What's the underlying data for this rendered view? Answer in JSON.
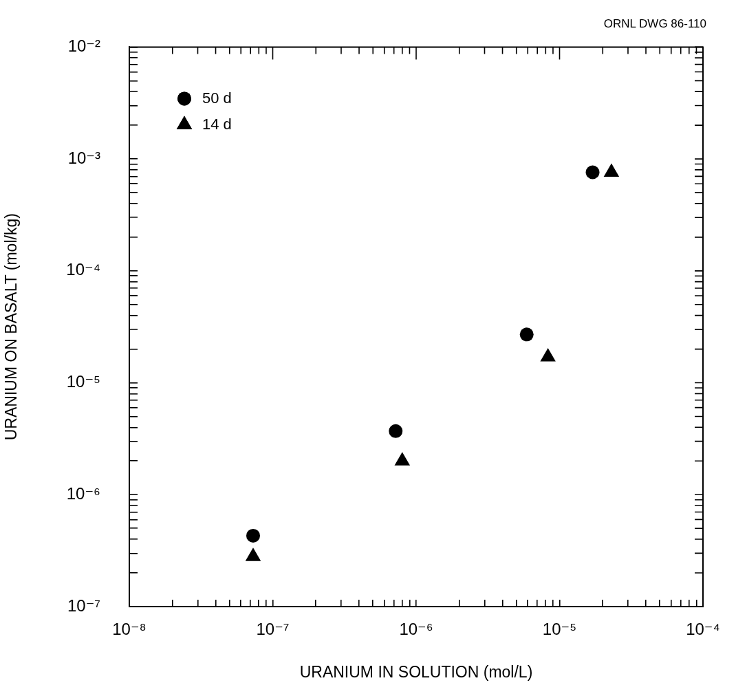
{
  "chart_data": {
    "type": "scatter",
    "xlabel": "URANIUM IN SOLUTION (mol/L)",
    "ylabel": "URANIUM ON BASALT (mol/kg)",
    "annotations": [
      "ORNL DWG 86-110"
    ],
    "log": "xy",
    "grid": false,
    "legend": "top left",
    "series": [
      {
        "name": "50 d",
        "color": "#000000",
        "marker": "circle",
        "x": [
          7.3e-08,
          7.2e-07,
          5.9e-06,
          1.7e-05
        ],
        "values": [
          4.3e-07,
          3.7e-06,
          2.7e-05,
          0.00076
        ]
      },
      {
        "name": "14 d",
        "color": "#000000",
        "marker": "triangle",
        "x": [
          7.3e-08,
          8e-07,
          8.3e-06,
          2.3e-05
        ],
        "values": [
          2.8e-07,
          2e-06,
          1.7e-05,
          0.00076
        ]
      }
    ],
    "xlim": [
      1e-08,
      0.0001
    ],
    "ylim": [
      1e-07,
      0.01
    ],
    "xticks": [
      {
        "value": 1e-08,
        "label": "10⁻⁸"
      },
      {
        "value": 2e-08,
        "label": null
      },
      {
        "value": 3e-08,
        "label": null
      },
      {
        "value": 4e-08,
        "label": null
      },
      {
        "value": 5e-08,
        "label": null
      },
      {
        "value": 6e-08,
        "label": null
      },
      {
        "value": 7e-08,
        "label": null
      },
      {
        "value": 8e-08,
        "label": null
      },
      {
        "value": 9e-08,
        "label": null
      },
      {
        "value": 1e-07,
        "label": "10⁻⁷"
      },
      {
        "value": 2e-07,
        "label": null
      },
      {
        "value": 3e-07,
        "label": null
      },
      {
        "value": 4e-07,
        "label": null
      },
      {
        "value": 5e-07,
        "label": null
      },
      {
        "value": 6e-07,
        "label": null
      },
      {
        "value": 7e-07,
        "label": null
      },
      {
        "value": 8e-07,
        "label": null
      },
      {
        "value": 9e-07,
        "label": null
      },
      {
        "value": 1e-06,
        "label": "10⁻⁶"
      },
      {
        "value": 2e-06,
        "label": null
      },
      {
        "value": 3e-06,
        "label": null
      },
      {
        "value": 4e-06,
        "label": null
      },
      {
        "value": 5e-06,
        "label": null
      },
      {
        "value": 6e-06,
        "label": null
      },
      {
        "value": 7e-06,
        "label": null
      },
      {
        "value": 8e-06,
        "label": null
      },
      {
        "value": 9e-06,
        "label": null
      },
      {
        "value": 1e-05,
        "label": "10⁻⁵"
      },
      {
        "value": 2e-05,
        "label": null
      },
      {
        "value": 3e-05,
        "label": null
      },
      {
        "value": 4e-05,
        "label": null
      },
      {
        "value": 5e-05,
        "label": null
      },
      {
        "value": 6e-05,
        "label": null
      },
      {
        "value": 7e-05,
        "label": null
      },
      {
        "value": 8e-05,
        "label": null
      },
      {
        "value": 9e-05,
        "label": null
      },
      {
        "value": 0.0001,
        "label": "10⁻⁴"
      }
    ],
    "yticks": [
      {
        "value": 1e-07,
        "label": "10⁻⁷"
      },
      {
        "value": 2e-07,
        "label": null
      },
      {
        "value": 3e-07,
        "label": null
      },
      {
        "value": 4e-07,
        "label": null
      },
      {
        "value": 5e-07,
        "label": null
      },
      {
        "value": 6e-07,
        "label": null
      },
      {
        "value": 7e-07,
        "label": null
      },
      {
        "value": 8e-07,
        "label": null
      },
      {
        "value": 9e-07,
        "label": null
      },
      {
        "value": 1e-06,
        "label": "10⁻⁶"
      },
      {
        "value": 2e-06,
        "label": null
      },
      {
        "value": 3e-06,
        "label": null
      },
      {
        "value": 4e-06,
        "label": null
      },
      {
        "value": 5e-06,
        "label": null
      },
      {
        "value": 6e-06,
        "label": null
      },
      {
        "value": 7e-06,
        "label": null
      },
      {
        "value": 8e-06,
        "label": null
      },
      {
        "value": 9e-06,
        "label": null
      },
      {
        "value": 1e-05,
        "label": "10⁻⁵"
      },
      {
        "value": 2e-05,
        "label": null
      },
      {
        "value": 3e-05,
        "label": null
      },
      {
        "value": 4e-05,
        "label": null
      },
      {
        "value": 5e-05,
        "label": null
      },
      {
        "value": 6e-05,
        "label": null
      },
      {
        "value": 7e-05,
        "label": null
      },
      {
        "value": 8e-05,
        "label": null
      },
      {
        "value": 9e-05,
        "label": null
      },
      {
        "value": 0.0001,
        "label": "10⁻⁴"
      },
      {
        "value": 0.0002,
        "label": null
      },
      {
        "value": 0.0003,
        "label": null
      },
      {
        "value": 0.0004,
        "label": null
      },
      {
        "value": 0.0005,
        "label": null
      },
      {
        "value": 0.0006,
        "label": null
      },
      {
        "value": 0.0007,
        "label": null
      },
      {
        "value": 0.0008,
        "label": null
      },
      {
        "value": 0.0009,
        "label": null
      },
      {
        "value": 0.001,
        "label": "10⁻³"
      },
      {
        "value": 0.002,
        "label": null
      },
      {
        "value": 0.003,
        "label": null
      },
      {
        "value": 0.004,
        "label": null
      },
      {
        "value": 0.005,
        "label": null
      },
      {
        "value": 0.006,
        "label": null
      },
      {
        "value": 0.007,
        "label": null
      },
      {
        "value": 0.008,
        "label": null
      },
      {
        "value": 0.009,
        "label": null
      },
      {
        "value": 0.01,
        "label": "10⁻²"
      }
    ]
  }
}
